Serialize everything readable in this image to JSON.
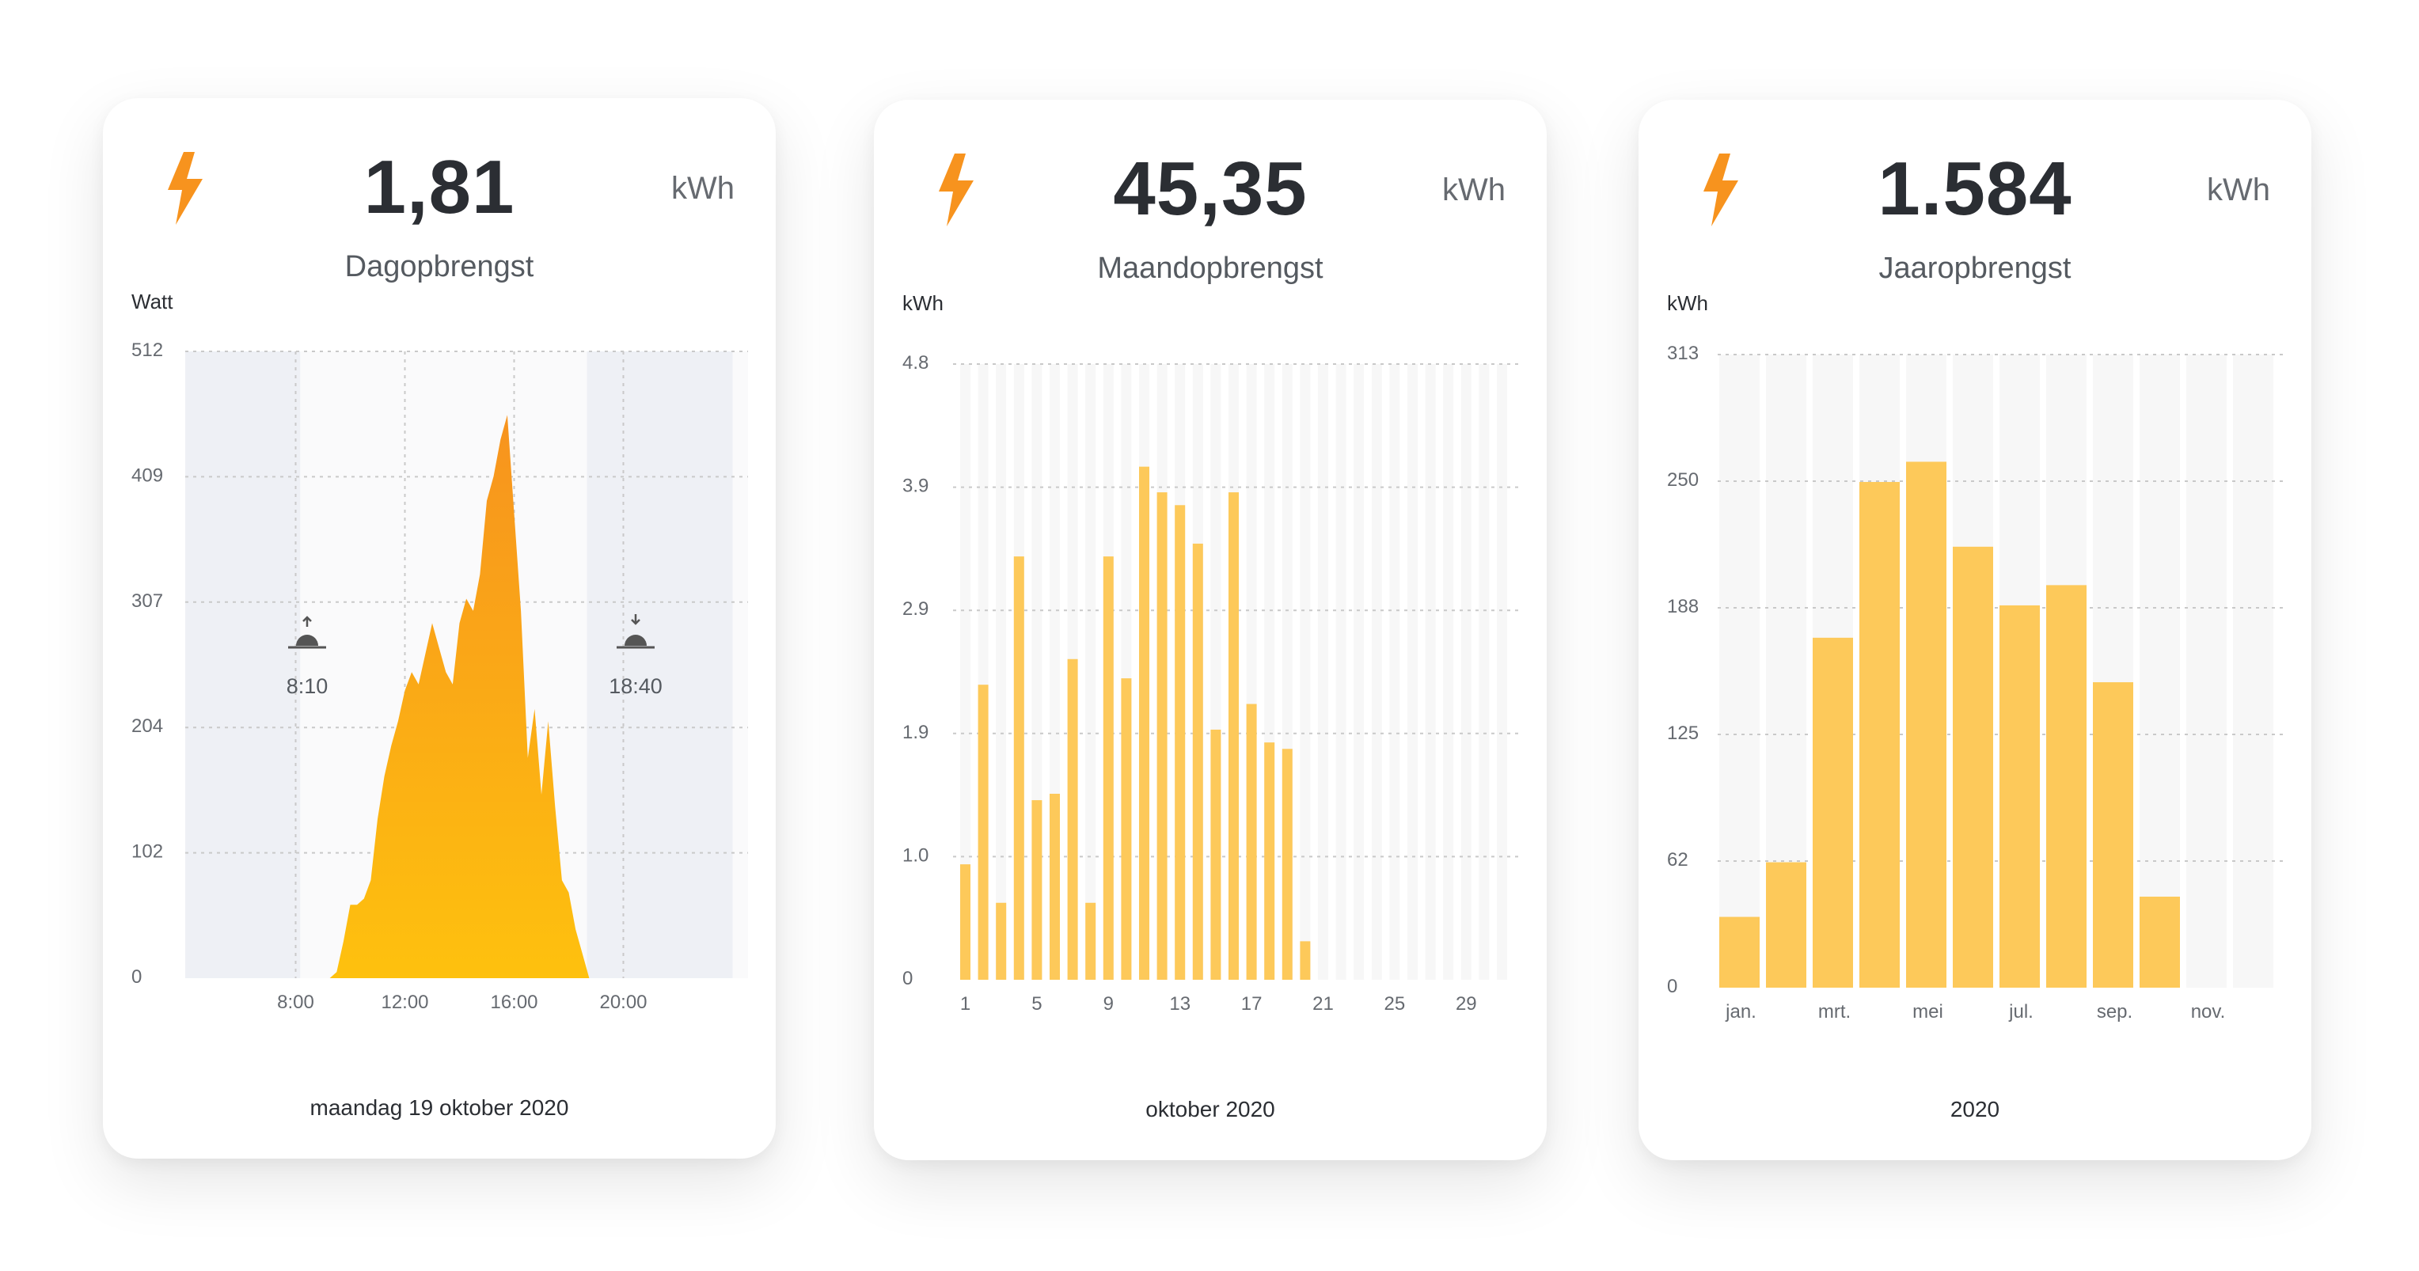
{
  "cards": [
    {
      "value": "1,81",
      "unit": "kWh",
      "subtitle": "Dagopbrengst",
      "axis_unit": "Watt",
      "footer": "maandag 19 oktober 2020",
      "sunrise_label": "8:10",
      "sunset_label": "18:40",
      "icon": "lightning-bolt-icon",
      "chart_data": {
        "type": "area",
        "title": "",
        "ylabel": "Watt",
        "ylim": [
          0,
          512
        ],
        "yticks": [
          "0",
          "102",
          "204",
          "307",
          "409",
          "512"
        ],
        "xticks": [
          "8:00",
          "12:00",
          "16:00",
          "20:00"
        ],
        "x_unit": "hour",
        "x": [
          9.25,
          9.5,
          9.75,
          10.0,
          10.25,
          10.5,
          10.75,
          11.0,
          11.25,
          11.5,
          11.75,
          12.0,
          12.25,
          12.5,
          12.75,
          13.0,
          13.25,
          13.5,
          13.75,
          14.0,
          14.25,
          14.5,
          14.75,
          15.0,
          15.25,
          15.5,
          15.75,
          16.0,
          16.25,
          16.5,
          16.75,
          17.0,
          17.25,
          17.5,
          17.75,
          18.0,
          18.25,
          18.5,
          18.75
        ],
        "values": [
          0,
          5,
          30,
          60,
          60,
          65,
          80,
          130,
          165,
          190,
          210,
          235,
          250,
          240,
          265,
          290,
          270,
          250,
          240,
          290,
          310,
          300,
          330,
          390,
          410,
          440,
          460,
          380,
          300,
          180,
          220,
          150,
          210,
          140,
          80,
          70,
          40,
          20,
          0
        ],
        "grid": true,
        "night_shading": [
          [
            0,
            8.1667
          ],
          [
            18.6667,
            24
          ]
        ]
      }
    },
    {
      "value": "45,35",
      "unit": "kWh",
      "subtitle": "Maandopbrengst",
      "axis_unit": "kWh",
      "footer": "oktober 2020",
      "icon": "lightning-bolt-icon",
      "chart_data": {
        "type": "bar",
        "title": "",
        "ylabel": "kWh",
        "ylim": [
          0,
          4.8
        ],
        "yticks": [
          "0",
          "1.0",
          "1.9",
          "2.9",
          "3.9",
          "4.8"
        ],
        "xticks": [
          "1",
          "5",
          "9",
          "13",
          "17",
          "21",
          "25",
          "29"
        ],
        "categories": [
          "1",
          "2",
          "3",
          "4",
          "5",
          "6",
          "7",
          "8",
          "9",
          "10",
          "11",
          "12",
          "13",
          "14",
          "15",
          "16",
          "17",
          "18",
          "19",
          "20",
          "21",
          "22",
          "23",
          "24",
          "25",
          "26",
          "27",
          "28",
          "29",
          "30",
          "31"
        ],
        "values": [
          0.9,
          2.3,
          0.6,
          3.3,
          1.4,
          1.45,
          2.5,
          0.6,
          3.3,
          2.35,
          4.0,
          3.8,
          3.7,
          3.4,
          1.95,
          3.8,
          2.15,
          1.85,
          1.8,
          0.3,
          null,
          null,
          null,
          null,
          null,
          null,
          null,
          null,
          null,
          null,
          null
        ],
        "grid": true
      }
    },
    {
      "value": "1.584",
      "unit": "kWh",
      "subtitle": "Jaaropbrengst",
      "axis_unit": "kWh",
      "footer": "2020",
      "icon": "lightning-bolt-icon",
      "chart_data": {
        "type": "bar",
        "title": "",
        "ylabel": "kWh",
        "ylim": [
          0,
          313
        ],
        "yticks": [
          "0",
          "62",
          "125",
          "188",
          "250",
          "313"
        ],
        "xticks": [
          "jan.",
          "mrt.",
          "mei",
          "jul.",
          "sep.",
          "nov."
        ],
        "categories": [
          "jan.",
          "feb.",
          "mrt.",
          "apr.",
          "mei",
          "jun.",
          "jul.",
          "aug.",
          "sep.",
          "okt.",
          "nov.",
          "dec."
        ],
        "values": [
          35,
          62,
          173,
          250,
          260,
          218,
          189,
          199,
          151,
          45,
          null,
          null
        ],
        "grid": true
      }
    }
  ],
  "colors": {
    "bolt": "#f7931e",
    "bar": "#fdc95a",
    "area_top": "#f7931e",
    "area_bottom": "#fec10e",
    "slot": "#f7f7f7",
    "night": "#eef0f5",
    "grid": "#c9c9c9",
    "tick": "#666a70"
  }
}
